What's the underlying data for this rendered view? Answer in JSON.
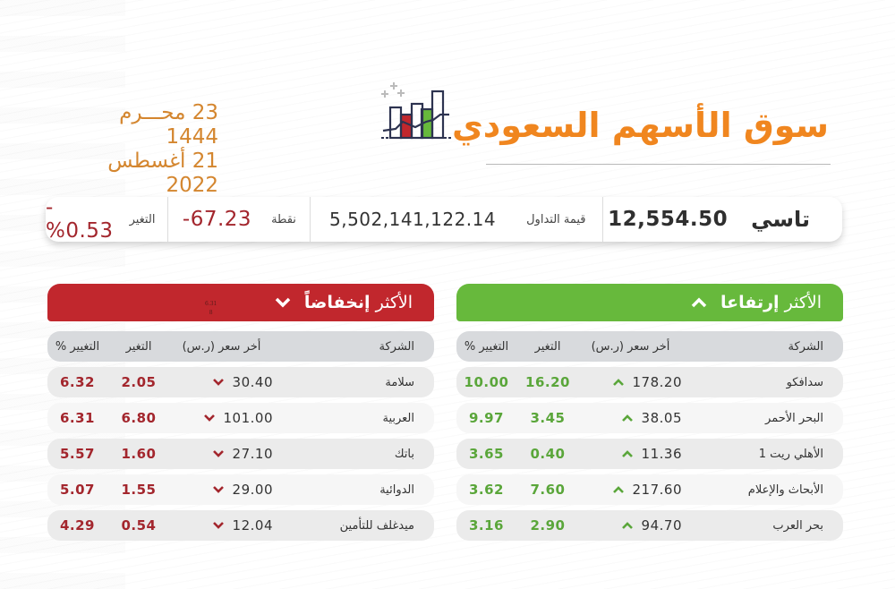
{
  "header": {
    "title": "سوق الأسهم السعودي",
    "date_hijri": "23 محـــرم 1444",
    "date_gregorian": "21 أغسطس 2022",
    "logo_icon": "bar-chart-icon"
  },
  "colors": {
    "title_orange": "#f0861f",
    "date_orange": "#d4862f",
    "gain_green": "#67b93c",
    "loss_red": "#c1272d",
    "loss_text": "#a3262d",
    "gain_text": "#5aa63a"
  },
  "summary": {
    "index_label": "تاسي",
    "index_value": "12,554.50",
    "turnover_label": "قيمة التداول",
    "turnover_value": "5,502,141,122.14",
    "points_label": "نقطة",
    "points_value": "-67.23",
    "change_label": "التغير",
    "change_value": "-%0.53"
  },
  "gainers": {
    "title_prefix": "الأكثر",
    "title_bold": "إرتفاعا",
    "icon": "chevron-up-icon",
    "columns": {
      "company": "الشركة",
      "price": "أخر سعر (ر.س)",
      "change": "التغير",
      "pct": "التغيير %"
    },
    "rows": [
      {
        "company": "سدافكو",
        "price": "178.20",
        "change": "16.20",
        "pct": "10.00"
      },
      {
        "company": "البحر الأحمر",
        "price": "38.05",
        "change": "3.45",
        "pct": "9.97"
      },
      {
        "company": "الأهلي ريت 1",
        "price": "11.36",
        "change": "0.40",
        "pct": "3.65"
      },
      {
        "company": "الأبحاث والإعلام",
        "price": "217.60",
        "change": "7.60",
        "pct": "3.62"
      },
      {
        "company": "بحر العرب",
        "price": "94.70",
        "change": "2.90",
        "pct": "3.16"
      }
    ]
  },
  "losers": {
    "title_prefix": "الأكثر",
    "title_bold": "إنخفاضاً",
    "icon": "chevron-down-icon",
    "stray_label": "6.31",
    "stray_mark": "8",
    "columns": {
      "company": "الشركة",
      "price": "أخر سعر (ر.س)",
      "change": "التغير",
      "pct": "التغيير %"
    },
    "rows": [
      {
        "company": "سلامة",
        "price": "30.40",
        "change": "2.05",
        "pct": "6.32"
      },
      {
        "company": "العربية",
        "price": "101.00",
        "change": "6.80",
        "pct": "6.31"
      },
      {
        "company": "باتك",
        "price": "27.10",
        "change": "1.60",
        "pct": "5.57"
      },
      {
        "company": "الدوائية",
        "price": "29.00",
        "change": "1.55",
        "pct": "5.07"
      },
      {
        "company": "ميدغلف للتأمين",
        "price": "12.04",
        "change": "0.54",
        "pct": "4.29"
      }
    ]
  }
}
